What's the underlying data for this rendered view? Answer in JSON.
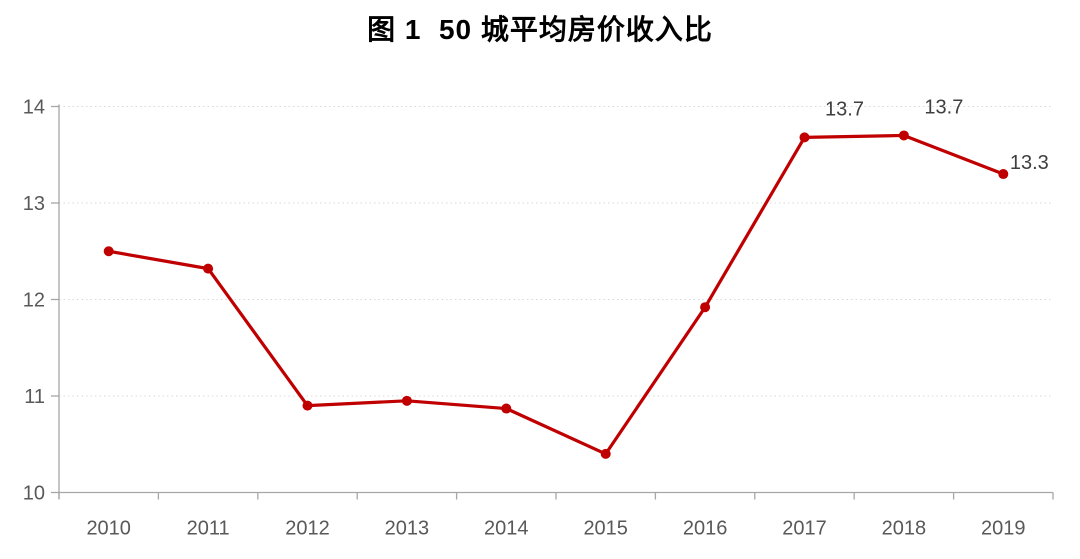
{
  "header": {
    "title": "图 1  50 城平均房价收入比"
  },
  "chart_data": {
    "type": "line",
    "title": "图 1  50 城平均房价收入比",
    "xlabel": "",
    "ylabel": "",
    "categories": [
      "2010",
      "2011",
      "2012",
      "2013",
      "2014",
      "2015",
      "2016",
      "2017",
      "2018",
      "2019"
    ],
    "series": [
      {
        "name": "50城平均房价收入比",
        "values": [
          12.5,
          12.32,
          10.9,
          10.95,
          10.87,
          10.4,
          11.92,
          13.68,
          13.7,
          13.3
        ]
      }
    ],
    "point_labels": [
      null,
      null,
      null,
      null,
      null,
      null,
      null,
      "13.7",
      "13.7",
      "13.3"
    ],
    "ylim": [
      10,
      14
    ],
    "yticks": [
      10,
      11,
      12,
      13,
      14
    ],
    "grid": "horizontal-dotted",
    "legend": "none",
    "colors": {
      "line": "#c00000",
      "marker": "#c00000",
      "axis": "#a6a6a6",
      "grid": "#d9d9d9",
      "tick_label": "#595959",
      "data_label": "#3f3f3f",
      "title": "#000000",
      "background": "#ffffff"
    }
  }
}
